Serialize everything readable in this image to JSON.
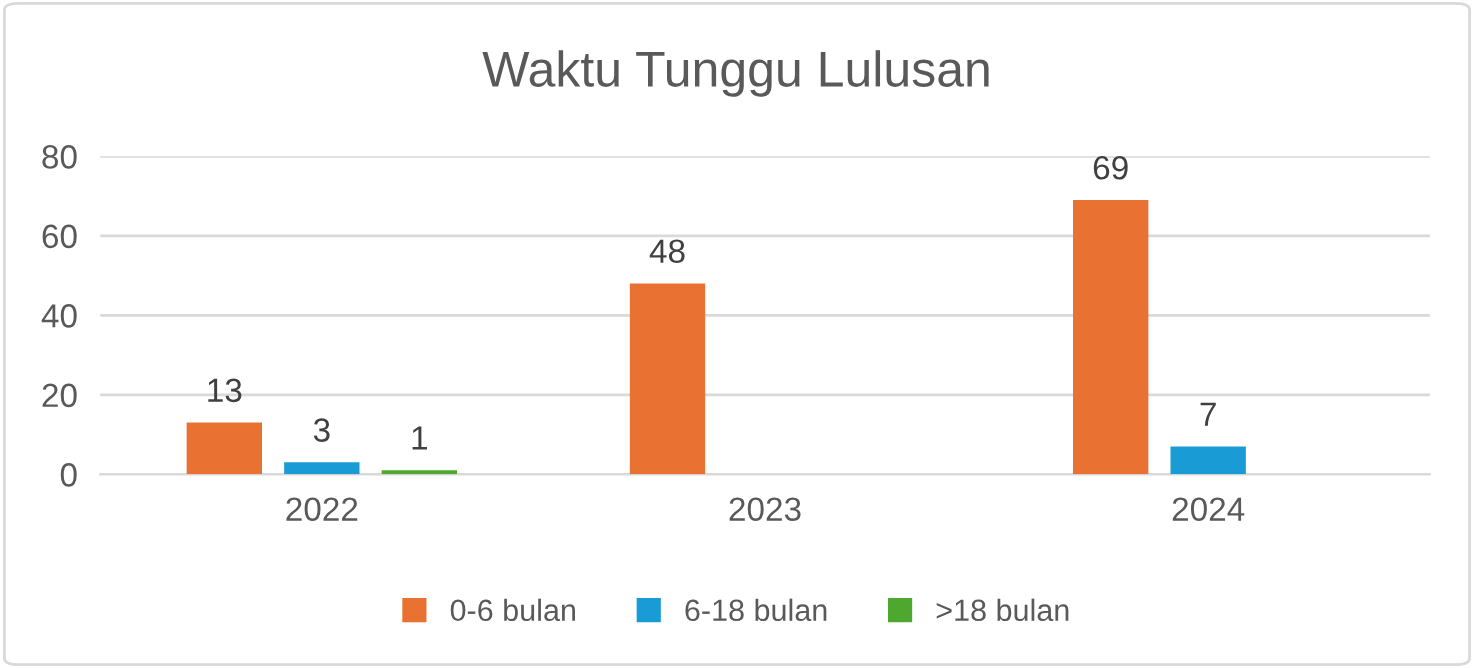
{
  "chart_data": {
    "type": "bar",
    "title": "Waktu Tunggu Lulusan",
    "categories": [
      "2022",
      "2023",
      "2024"
    ],
    "series": [
      {
        "name": "0-6 bulan",
        "color": "#e97132",
        "values": [
          13,
          48,
          69
        ]
      },
      {
        "name": "6-18 bulan",
        "color": "#199bd6",
        "values": [
          3,
          null,
          7
        ]
      },
      {
        "name": ">18 bulan",
        "color": "#4ea72e",
        "values": [
          1,
          null,
          null
        ]
      }
    ],
    "ylim": [
      0,
      80
    ],
    "yticks": [
      0,
      20,
      40,
      60,
      80
    ],
    "grid": "y",
    "legend": "bottom",
    "data_labels": true
  }
}
